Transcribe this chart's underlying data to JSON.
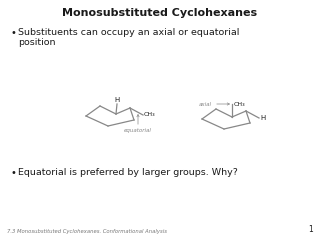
{
  "title": "Monosubstituted Cyclohexanes",
  "bullet1_line1": "Substituents can occupy an axial or equatorial",
  "bullet1_line2": "position",
  "bullet2": "Equatorial is preferred by larger groups. Why?",
  "footer": "7.3 Monosubstituted Cyclohexanes. Conformational Analysis",
  "page_num": "1",
  "bg_color": "#ffffff",
  "text_color": "#1a1a1a",
  "line_color": "#888888",
  "label_color": "#888888",
  "ch3_label": "CH₃",
  "h_label": "H",
  "axial_label": "axial",
  "equatorial_label": "equatorial"
}
